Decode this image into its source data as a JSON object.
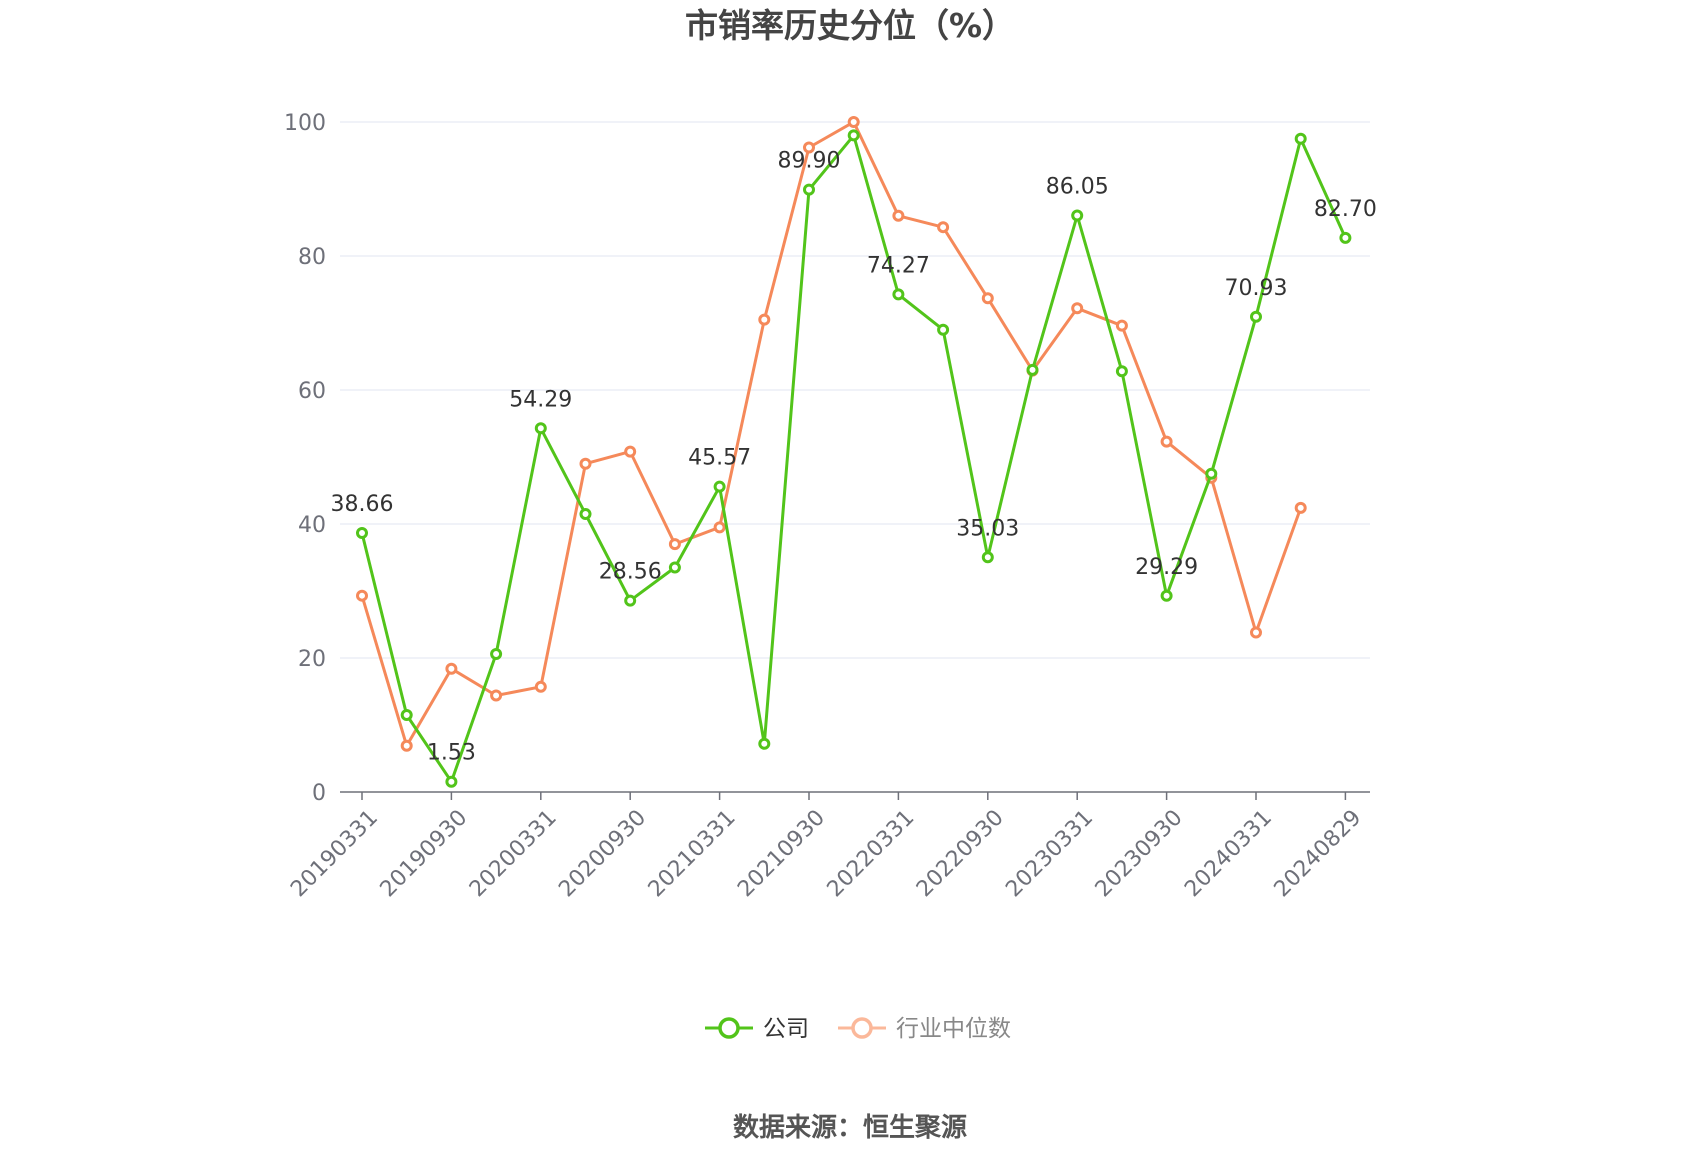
{
  "chart_data": {
    "type": "line",
    "title": "市销率历史分位（%）",
    "source": "数据来源：恒生聚源",
    "ylim": [
      0,
      100
    ],
    "yticks": [
      "0",
      "20",
      "40",
      "60",
      "80",
      "100"
    ],
    "grid": true,
    "legend_position": "bottom",
    "x_tick_labels": [
      "20190331",
      "20190930",
      "20200331",
      "20200930",
      "20210331",
      "20210930",
      "20220331",
      "20220930",
      "20230331",
      "20230930",
      "20240331",
      "20240829"
    ],
    "x_tick_indices": [
      0,
      2,
      4,
      6,
      8,
      10,
      12,
      14,
      16,
      18,
      20,
      22
    ],
    "point_count": 23,
    "series": [
      {
        "name": "公司",
        "color": "#52c41a",
        "values": [
          38.66,
          11.5,
          1.53,
          20.6,
          54.29,
          41.5,
          28.56,
          33.5,
          45.57,
          7.2,
          89.9,
          98.0,
          74.27,
          69.0,
          35.03,
          63.0,
          86.05,
          62.8,
          29.29,
          47.5,
          70.93,
          97.5,
          82.7
        ],
        "labels": [
          "38.66",
          "",
          "1.53",
          "",
          "54.29",
          "",
          "28.56",
          "",
          "45.57",
          "",
          "89.90",
          "",
          "74.27",
          "",
          "35.03",
          "",
          "86.05",
          "",
          "29.29",
          "",
          "70.93",
          "",
          "82.70"
        ]
      },
      {
        "name": "行业中位数",
        "color": "#f5895a",
        "values": [
          29.3,
          6.9,
          18.4,
          14.4,
          15.7,
          49.0,
          50.8,
          37.0,
          39.5,
          70.5,
          96.2,
          100.0,
          86.0,
          84.3,
          73.7,
          62.9,
          72.2,
          69.6,
          52.3,
          46.9,
          23.8,
          42.4,
          null
        ]
      }
    ]
  }
}
